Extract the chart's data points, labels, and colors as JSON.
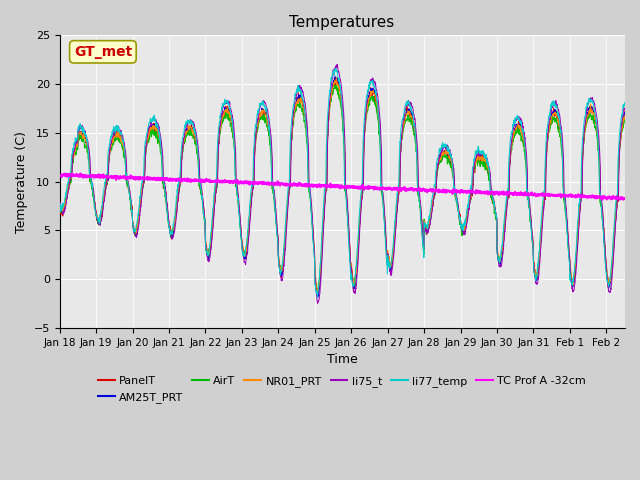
{
  "title": "Temperatures",
  "xlabel": "Time",
  "ylabel": "Temperature (C)",
  "ylim": [
    -5,
    25
  ],
  "xlim_days": [
    0,
    15.5
  ],
  "x_tick_labels": [
    "Jan 18",
    "Jan 19",
    "Jan 20",
    "Jan 21",
    "Jan 22",
    "Jan 23",
    "Jan 24",
    "Jan 25",
    "Jan 26",
    "Jan 27",
    "Jan 28",
    "Jan 29",
    "Jan 30",
    "Jan 31",
    "Feb 1",
    "Feb 2"
  ],
  "annotation_text": "GT_met",
  "annotation_color": "#cc0000",
  "annotation_bg": "#ffffcc",
  "annotation_edge": "#999900",
  "series_colors": {
    "PanelT": "#dd0000",
    "AM25T_PRT": "#0000dd",
    "AirT": "#00bb00",
    "NR01_PRT": "#ff8800",
    "li75_t": "#9900bb",
    "li77_temp": "#00cccc",
    "TC_Prof_A": "#ff00ff"
  },
  "legend_labels": [
    "PanelT",
    "AM25T_PRT",
    "AirT",
    "NR01_PRT",
    "li75_t",
    "li77_temp",
    "TC Prof A -32cm"
  ],
  "fig_bg": "#d0d0d0",
  "plot_bg": "#e8e8e8",
  "grid_color": "#ffffff"
}
